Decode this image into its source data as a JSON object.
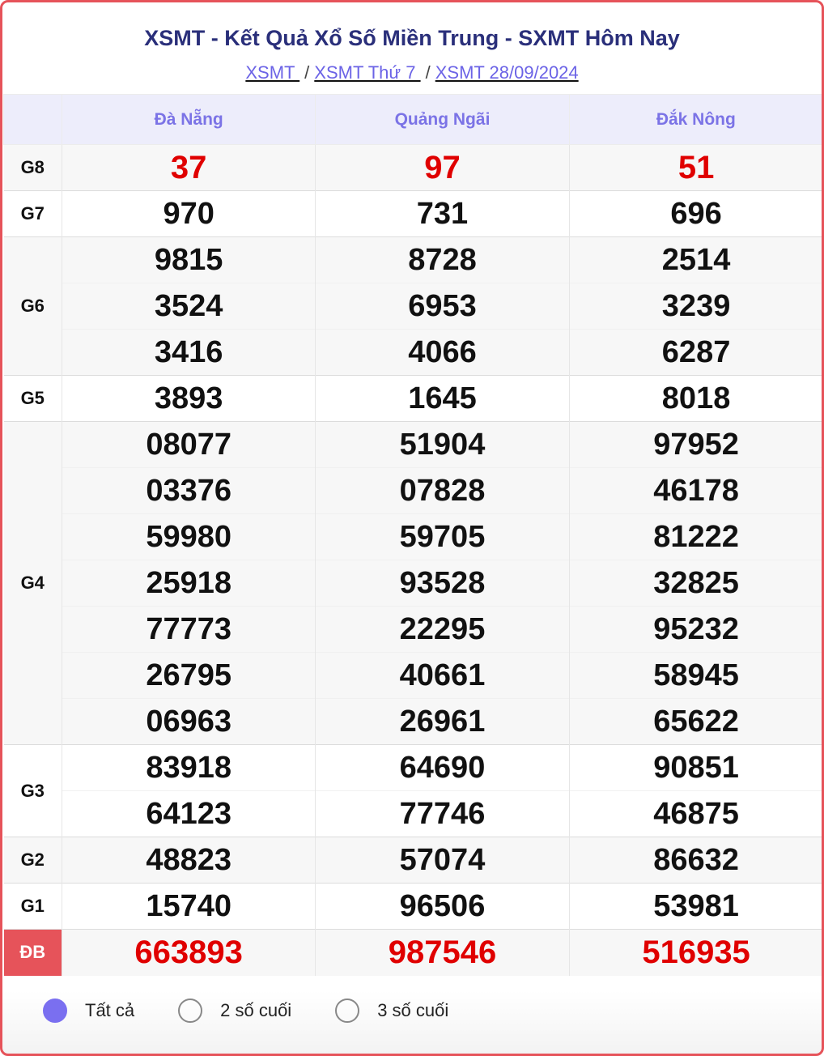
{
  "title": "XSMT - Kết Quả Xổ Số Miền Trung - SXMT Hôm Nay",
  "breadcrumb": [
    "XSMT ",
    "XSMT Thứ 7 ",
    "XSMT 28/09/2024"
  ],
  "provinces": [
    "Đà Nẵng",
    "Quảng Ngãi",
    "Đắk Nông"
  ],
  "prizes": [
    {
      "label": "G8",
      "rows": [
        [
          "37",
          "97",
          "51"
        ]
      ]
    },
    {
      "label": "G7",
      "rows": [
        [
          "970",
          "731",
          "696"
        ]
      ]
    },
    {
      "label": "G6",
      "rows": [
        [
          "9815",
          "8728",
          "2514"
        ],
        [
          "3524",
          "6953",
          "3239"
        ],
        [
          "3416",
          "4066",
          "6287"
        ]
      ]
    },
    {
      "label": "G5",
      "rows": [
        [
          "3893",
          "1645",
          "8018"
        ]
      ]
    },
    {
      "label": "G4",
      "rows": [
        [
          "08077",
          "51904",
          "97952"
        ],
        [
          "03376",
          "07828",
          "46178"
        ],
        [
          "59980",
          "59705",
          "81222"
        ],
        [
          "25918",
          "93528",
          "32825"
        ],
        [
          "77773",
          "22295",
          "95232"
        ],
        [
          "26795",
          "40661",
          "58945"
        ],
        [
          "06963",
          "26961",
          "65622"
        ]
      ]
    },
    {
      "label": "G3",
      "rows": [
        [
          "83918",
          "64690",
          "90851"
        ],
        [
          "64123",
          "77746",
          "46875"
        ]
      ]
    },
    {
      "label": "G2",
      "rows": [
        [
          "48823",
          "57074",
          "86632"
        ]
      ]
    },
    {
      "label": "G1",
      "rows": [
        [
          "15740",
          "96506",
          "53981"
        ]
      ]
    },
    {
      "label": "ĐB",
      "rows": [
        [
          "663893",
          "987546",
          "516935"
        ]
      ]
    }
  ],
  "filters": [
    {
      "label": "Tất cả",
      "selected": true
    },
    {
      "label": "2 số cuối",
      "selected": false
    },
    {
      "label": "3 số cuối",
      "selected": false
    }
  ],
  "colors": {
    "accent": "#7a6ff0",
    "border": "#e6535a",
    "highlight": "#e00000"
  }
}
